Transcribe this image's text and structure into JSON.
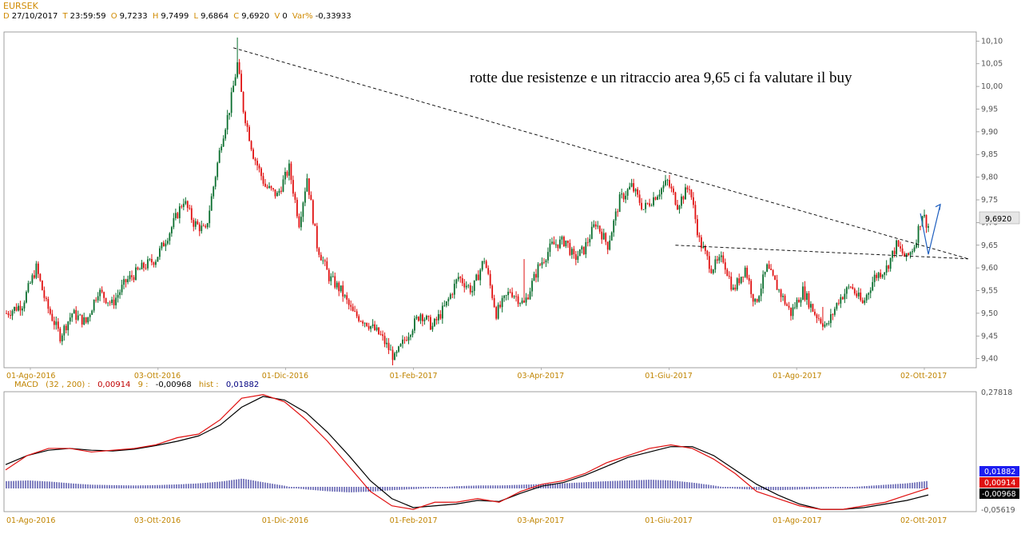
{
  "header": {
    "symbol": "EURSEK",
    "d_label": "D",
    "d_value": "27/10/2017",
    "t_label": "T",
    "t_value": "23:59:59",
    "o_label": "O",
    "o_value": "9,7233",
    "h_label": "H",
    "h_value": "9,7499",
    "l_label": "L",
    "l_value": "9,6864",
    "c_label": "C",
    "c_value": "9,6920",
    "v_label": "V",
    "v_value": "0",
    "var_label": "Var%",
    "var_value": "-0,33933"
  },
  "annotation": "rotte due resistenze e un ritraccio area 9,65 ci fa valutare il buy",
  "last_price_label": "9,6920",
  "macd": {
    "label": "MACD",
    "params": "(32 , 200) :",
    "macd_value": "0,00914",
    "signal_label": "9 :",
    "signal_value": "-0,00968",
    "hist_label": "hist :",
    "hist_value": "0,01882",
    "badge_hist": "0,01882",
    "badge_macd": "0,00914",
    "badge_signal": "-0,00968",
    "axis_top": "0,27818",
    "axis_bottom": "-0,05619"
  },
  "colors": {
    "up_candle": "#0a6e2e",
    "down_candle": "#e01010",
    "date_labels": "#c08400",
    "macd_line": "#e01010",
    "signal_line": "#000000",
    "histogram": "#000080",
    "arrow": "#1f5fbf",
    "badge_hist": "#1d1df0",
    "badge_macd": "#e01010",
    "badge_signal": "#000000"
  },
  "chart_data": [
    {
      "type": "candlestick",
      "title": "EURSEK",
      "ylim": [
        9.38,
        10.12
      ],
      "y_ticks": [
        "9,40",
        "9,45",
        "9,50",
        "9,55",
        "9,60",
        "9,65",
        "9,70",
        "9,75",
        "9,80",
        "9,85",
        "9,90",
        "9,95",
        "10,00",
        "10,05",
        "10,10"
      ],
      "x_ticks": [
        "01-Ago-2016",
        "03-Ott-2016",
        "01-Dic-2016",
        "01-Feb-2017",
        "03-Apr-2017",
        "01-Giu-2017",
        "01-Ago-2017",
        "02-Ott-2017"
      ],
      "close_path": [
        [
          0,
          9.5
        ],
        [
          8,
          9.52
        ],
        [
          15,
          9.6
        ],
        [
          20,
          9.52
        ],
        [
          27,
          9.45
        ],
        [
          33,
          9.5
        ],
        [
          40,
          9.48
        ],
        [
          46,
          9.55
        ],
        [
          53,
          9.52
        ],
        [
          60,
          9.57
        ],
        [
          68,
          9.6
        ],
        [
          75,
          9.62
        ],
        [
          82,
          9.68
        ],
        [
          89,
          9.75
        ],
        [
          94,
          9.7
        ],
        [
          100,
          9.68
        ],
        [
          104,
          9.78
        ],
        [
          108,
          9.88
        ],
        [
          112,
          9.95
        ],
        [
          116,
          10.05
        ],
        [
          119,
          9.95
        ],
        [
          124,
          9.85
        ],
        [
          130,
          9.78
        ],
        [
          136,
          9.76
        ],
        [
          142,
          9.82
        ],
        [
          147,
          9.7
        ],
        [
          151,
          9.8
        ],
        [
          156,
          9.65
        ],
        [
          162,
          9.58
        ],
        [
          168,
          9.55
        ],
        [
          174,
          9.5
        ],
        [
          181,
          9.48
        ],
        [
          188,
          9.45
        ],
        [
          195,
          9.4
        ],
        [
          201,
          9.45
        ],
        [
          208,
          9.5
        ],
        [
          214,
          9.47
        ],
        [
          221,
          9.52
        ],
        [
          227,
          9.58
        ],
        [
          234,
          9.55
        ],
        [
          240,
          9.62
        ],
        [
          246,
          9.5
        ],
        [
          253,
          9.55
        ],
        [
          260,
          9.52
        ],
        [
          267,
          9.6
        ],
        [
          274,
          9.65
        ],
        [
          281,
          9.66
        ],
        [
          285,
          9.62
        ],
        [
          290,
          9.64
        ],
        [
          296,
          9.7
        ],
        [
          302,
          9.65
        ],
        [
          308,
          9.75
        ],
        [
          314,
          9.78
        ],
        [
          320,
          9.73
        ],
        [
          326,
          9.76
        ],
        [
          332,
          9.79
        ],
        [
          337,
          9.74
        ],
        [
          343,
          9.78
        ],
        [
          348,
          9.66
        ],
        [
          354,
          9.6
        ],
        [
          360,
          9.62
        ],
        [
          365,
          9.55
        ],
        [
          371,
          9.6
        ],
        [
          376,
          9.52
        ],
        [
          382,
          9.6
        ],
        [
          388,
          9.55
        ],
        [
          394,
          9.5
        ],
        [
          400,
          9.55
        ],
        [
          406,
          9.5
        ],
        [
          412,
          9.47
        ],
        [
          418,
          9.53
        ],
        [
          424,
          9.56
        ],
        [
          430,
          9.52
        ],
        [
          436,
          9.58
        ],
        [
          442,
          9.6
        ],
        [
          447,
          9.65
        ],
        [
          452,
          9.62
        ],
        [
          456,
          9.65
        ],
        [
          460,
          9.72
        ],
        [
          463,
          9.69
        ]
      ],
      "x_range": [
        0,
        463
      ],
      "trendlines": [
        {
          "name": "descending resistance",
          "from": [
            114,
            10.085
          ],
          "to": [
            463,
            9.62
          ]
        },
        {
          "name": "horizontal resistance",
          "from": [
            336,
            9.65
          ],
          "to": [
            463,
            9.62
          ]
        }
      ],
      "projection_arrow": {
        "path": [
          [
            451,
            9.72
          ],
          [
            455,
            9.63
          ],
          [
            461,
            9.74
          ]
        ]
      },
      "last_close": 9.692
    },
    {
      "type": "line",
      "title": "MACD (32 , 200)",
      "ylim": [
        -0.05619,
        0.27818
      ],
      "series": [
        {
          "name": "MACD",
          "values": [
            0.06,
            0.1,
            0.12,
            0.12,
            0.11,
            0.115,
            0.12,
            0.13,
            0.15,
            0.16,
            0.2,
            0.26,
            0.27,
            0.25,
            0.2,
            0.14,
            0.07,
            0.0,
            -0.04,
            -0.05,
            -0.03,
            -0.03,
            -0.02,
            -0.03,
            0.0,
            0.02,
            0.03,
            0.05,
            0.08,
            0.1,
            0.12,
            0.13,
            0.12,
            0.09,
            0.05,
            0.0,
            -0.02,
            -0.04,
            -0.05,
            -0.05,
            -0.04,
            -0.03,
            -0.01,
            0.00914
          ]
        },
        {
          "name": "Signal",
          "values": [
            0.075,
            0.1,
            0.115,
            0.12,
            0.115,
            0.113,
            0.118,
            0.128,
            0.14,
            0.155,
            0.185,
            0.235,
            0.265,
            0.255,
            0.22,
            0.165,
            0.1,
            0.03,
            -0.02,
            -0.045,
            -0.04,
            -0.035,
            -0.025,
            -0.028,
            -0.005,
            0.015,
            0.025,
            0.045,
            0.07,
            0.095,
            0.11,
            0.125,
            0.125,
            0.1,
            0.06,
            0.02,
            -0.01,
            -0.035,
            -0.05,
            -0.05,
            -0.045,
            -0.035,
            -0.025,
            -0.00968
          ]
        },
        {
          "name": "hist",
          "values": [
            0.018,
            0.02,
            0.017,
            0.012,
            0.008,
            0.007,
            0.006,
            0.007,
            0.009,
            0.012,
            0.017,
            0.025,
            0.015,
            0.005,
            -0.008,
            -0.018,
            -0.024,
            -0.02,
            -0.012,
            -0.006,
            0.0,
            0.004,
            0.006,
            0.006,
            0.008,
            0.01,
            0.012,
            0.015,
            0.018,
            0.02,
            0.022,
            0.02,
            0.014,
            0.006,
            -0.004,
            -0.01,
            -0.012,
            -0.008,
            -0.004,
            0.0,
            0.004,
            0.008,
            0.012,
            0.01882
          ]
        }
      ]
    }
  ]
}
